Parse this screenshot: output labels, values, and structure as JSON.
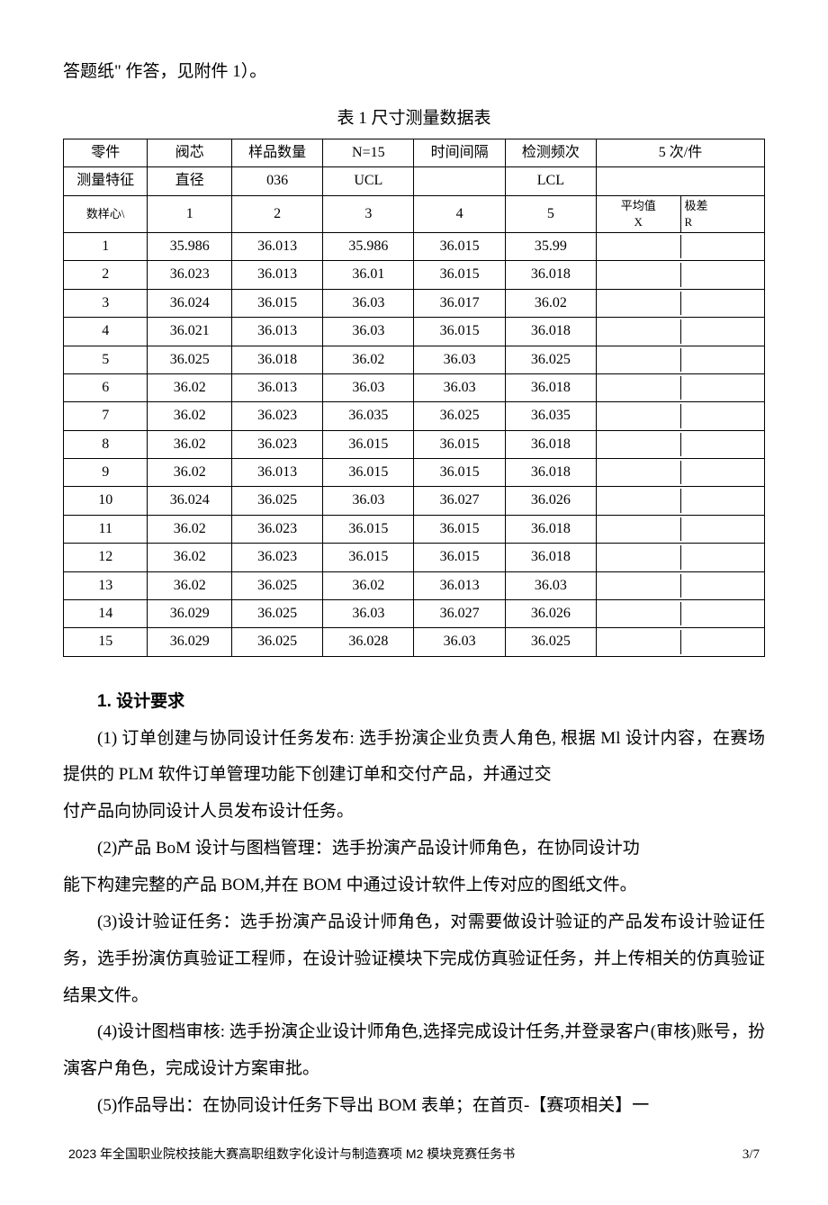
{
  "lead_line": "答题纸\" 作答，见附件 1）。",
  "table_caption": "表 1 尺寸测量数据表",
  "header_row_1": {
    "c1": "零件",
    "c2": "阀芯",
    "c3": "样品数量",
    "c4": "N=15",
    "c5": "时间间隔",
    "c6": "检测频次",
    "c7": "5 次/件"
  },
  "header_row_2": {
    "c1": "测量特征",
    "c2": "直径",
    "c3": "036",
    "c4": "UCL",
    "c5": "",
    "c6": "LCL",
    "c7": ""
  },
  "header_row_3": {
    "c1": "数样心\\",
    "c2": "1",
    "c3": "2",
    "c4": "3",
    "c5": "4",
    "c6": "5",
    "c7a_l1": "平均值",
    "c7a_l2": "X",
    "c7b_l1": "极差",
    "c7b_l2": "R"
  },
  "rows": [
    {
      "n": "1",
      "v": [
        "35.986",
        "36.013",
        "35.986",
        "36.015",
        "35.99"
      ]
    },
    {
      "n": "2",
      "v": [
        "36.023",
        "36.013",
        "36.01",
        "36.015",
        "36.018"
      ]
    },
    {
      "n": "3",
      "v": [
        "36.024",
        "36.015",
        "36.03",
        "36.017",
        "36.02"
      ]
    },
    {
      "n": "4",
      "v": [
        "36.021",
        "36.013",
        "36.03",
        "36.015",
        "36.018"
      ]
    },
    {
      "n": "5",
      "v": [
        "36.025",
        "36.018",
        "36.02",
        "36.03",
        "36.025"
      ]
    },
    {
      "n": "6",
      "v": [
        "36.02",
        "36.013",
        "36.03",
        "36.03",
        "36.018"
      ]
    },
    {
      "n": "7",
      "v": [
        "36.02",
        "36.023",
        "36.035",
        "36.025",
        "36.035"
      ]
    },
    {
      "n": "8",
      "v": [
        "36.02",
        "36.023",
        "36.015",
        "36.015",
        "36.018"
      ]
    },
    {
      "n": "9",
      "v": [
        "36.02",
        "36.013",
        "36.015",
        "36.015",
        "36.018"
      ]
    },
    {
      "n": "10",
      "v": [
        "36.024",
        "36.025",
        "36.03",
        "36.027",
        "36.026"
      ]
    },
    {
      "n": "11",
      "v": [
        "36.02",
        "36.023",
        "36.015",
        "36.015",
        "36.018"
      ]
    },
    {
      "n": "12",
      "v": [
        "36.02",
        "36.023",
        "36.015",
        "36.015",
        "36.018"
      ]
    },
    {
      "n": "13",
      "v": [
        "36.02",
        "36.025",
        "36.02",
        "36.013",
        "36.03"
      ]
    },
    {
      "n": "14",
      "v": [
        "36.029",
        "36.025",
        "36.03",
        "36.027",
        "36.026"
      ]
    },
    {
      "n": "15",
      "v": [
        "36.029",
        "36.025",
        "36.028",
        "36.03",
        "36.025"
      ]
    }
  ],
  "section_heading": "1. 设计要求",
  "paragraphs": [
    "(1) 订单创建与协同设计任务发布: 选手扮演企业负责人角色, 根据 Ml 设计内容，在赛场提供的 PLM 软件订单管理功能下创建订单和交付产品，并通过交",
    "付产品向协同设计人员发布设计任务。",
    "(2)产品 BoM 设计与图档管理：选手扮演产品设计师角色，在协同设计功",
    "能下构建完整的产品 BOM,并在 BOM 中通过设计软件上传对应的图纸文件。",
    "(3)设计验证任务：选手扮演产品设计师角色，对需要做设计验证的产品发布设计验证任务，选手扮演仿真验证工程师，在设计验证模块下完成仿真验证任务，并上传相关的仿真验证结果文件。",
    "(4)设计图档审核: 选手扮演企业设计师角色,选择完成设计任务,并登录客户(审核)账号，扮演客户角色，完成设计方案审批。",
    "(5)作品导出：在协同设计任务下导出 BOM 表单；在首页-【赛项相关】一"
  ],
  "footer_left": "2023 年全国职业院校技能大赛高职组数字化设计与制造赛项 M2 模块竞赛任务书",
  "footer_right": "3/7",
  "colors": {
    "text": "#000000",
    "background": "#ffffff",
    "border": "#000000"
  },
  "col_widths_pct": [
    12,
    12,
    13,
    13,
    13,
    13,
    24
  ]
}
